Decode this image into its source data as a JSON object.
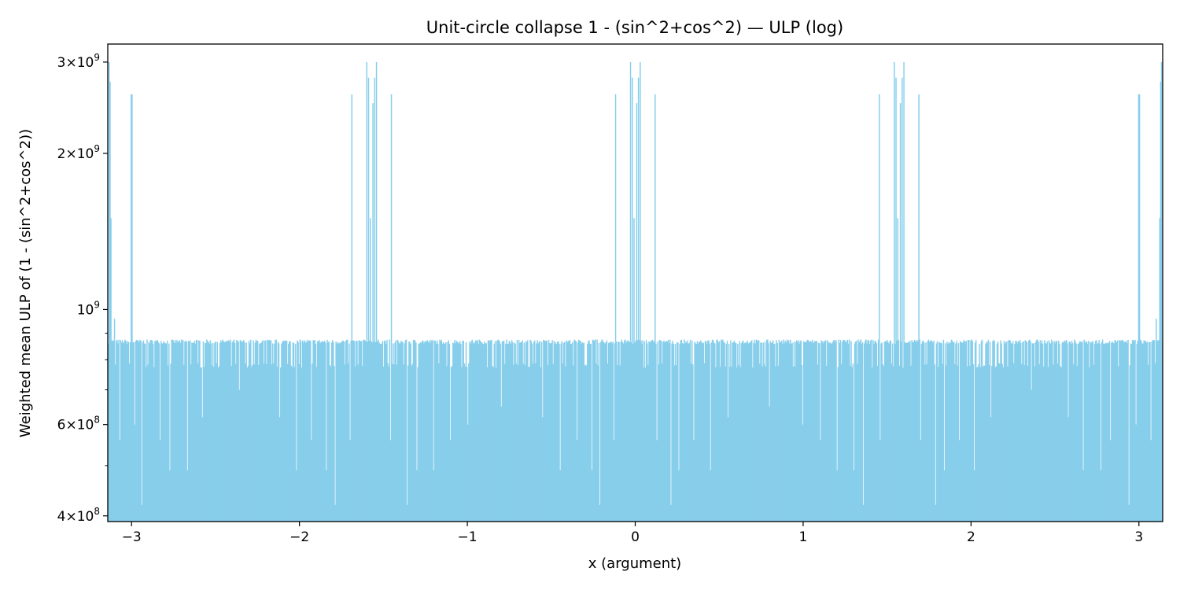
{
  "chart_data": {
    "type": "bar",
    "title": "Unit-circle collapse 1 - (sin^2+cos^2) — ULP (log)",
    "xlabel": "x (argument)",
    "ylabel": "Weighted mean ULP of (1 - (sin^2+cos^2))",
    "xlim": [
      -3.14159,
      3.14159
    ],
    "ylim": [
      390000000,
      3250000000
    ],
    "yscale": "log",
    "grid": false,
    "bar_color": "#87ceeb",
    "x_ticks": [
      {
        "value": -3,
        "label": "−3"
      },
      {
        "value": -2,
        "label": "−2"
      },
      {
        "value": -1,
        "label": "−1"
      },
      {
        "value": 0,
        "label": "0"
      },
      {
        "value": 1,
        "label": "1"
      },
      {
        "value": 2,
        "label": "2"
      },
      {
        "value": 3,
        "label": "3"
      }
    ],
    "y_ticks": [
      {
        "value": 400000000,
        "mantissa": "4",
        "exp": "8"
      },
      {
        "value": 600000000,
        "mantissa": "6",
        "exp": "8"
      },
      {
        "value": 1000000000,
        "mantissa": "",
        "exp": "9"
      },
      {
        "value": 2000000000,
        "mantissa": "2",
        "exp": "9"
      },
      {
        "value": 3000000000,
        "mantissa": "3",
        "exp": "9"
      }
    ],
    "y_minor_ticks": [
      500000000,
      700000000,
      800000000,
      900000000
    ],
    "series": [
      {
        "bin_count": 1200,
        "baseline_value": 880000000,
        "spike_groups": [
          {
            "center": -3.14159,
            "bars": [
              {
                "dx": 0.006,
                "value": 3000000000
              },
              {
                "dx": 0.012,
                "value": 2750000000
              },
              {
                "dx": 0.018,
                "value": 1500000000
              },
              {
                "dx": 0.04,
                "value": 960000000
              },
              {
                "dx": 0.14,
                "value": 2600000000
              },
              {
                "dx": 0.145,
                "value": 2600000000
              }
            ]
          },
          {
            "center": -1.5708,
            "bars": [
              {
                "dx": -0.12,
                "value": 2600000000
              },
              {
                "dx": -0.03,
                "value": 3000000000
              },
              {
                "dx": -0.02,
                "value": 2800000000
              },
              {
                "dx": -0.01,
                "value": 1500000000
              },
              {
                "dx": 0.01,
                "value": 2500000000
              },
              {
                "dx": 0.02,
                "value": 2800000000
              },
              {
                "dx": 0.03,
                "value": 3000000000
              },
              {
                "dx": 0.12,
                "value": 2600000000
              }
            ]
          },
          {
            "center": 0,
            "bars": [
              {
                "dx": -0.12,
                "value": 2600000000
              },
              {
                "dx": -0.03,
                "value": 3000000000
              },
              {
                "dx": -0.02,
                "value": 2800000000
              },
              {
                "dx": -0.01,
                "value": 1500000000
              },
              {
                "dx": 0.01,
                "value": 2500000000
              },
              {
                "dx": 0.02,
                "value": 2800000000
              },
              {
                "dx": 0.03,
                "value": 3000000000
              },
              {
                "dx": 0.12,
                "value": 2600000000
              }
            ]
          },
          {
            "center": 1.5708,
            "bars": [
              {
                "dx": -0.12,
                "value": 2600000000
              },
              {
                "dx": -0.03,
                "value": 3000000000
              },
              {
                "dx": -0.02,
                "value": 2800000000
              },
              {
                "dx": -0.01,
                "value": 1500000000
              },
              {
                "dx": 0.01,
                "value": 2500000000
              },
              {
                "dx": 0.02,
                "value": 2800000000
              },
              {
                "dx": 0.03,
                "value": 3000000000
              },
              {
                "dx": 0.12,
                "value": 2600000000
              }
            ]
          },
          {
            "center": 3.14159,
            "bars": [
              {
                "dx": -0.006,
                "value": 3000000000
              },
              {
                "dx": -0.012,
                "value": 2750000000
              },
              {
                "dx": -0.018,
                "value": 1500000000
              },
              {
                "dx": -0.04,
                "value": 960000000
              },
              {
                "dx": -0.14,
                "value": 2600000000
              },
              {
                "dx": -0.145,
                "value": 2600000000
              }
            ]
          }
        ],
        "dips": [
          {
            "x": -3.1,
            "value": 620000000
          },
          {
            "x": -3.07,
            "value": 560000000
          },
          {
            "x": -2.98,
            "value": 600000000
          },
          {
            "x": -2.94,
            "value": 420000000
          },
          {
            "x": -2.83,
            "value": 560000000
          },
          {
            "x": -2.77,
            "value": 490000000
          },
          {
            "x": -2.67,
            "value": 490000000
          },
          {
            "x": -2.58,
            "value": 620000000
          },
          {
            "x": -2.36,
            "value": 700000000
          },
          {
            "x": -2.12,
            "value": 620000000
          },
          {
            "x": -2.02,
            "value": 490000000
          },
          {
            "x": -1.93,
            "value": 560000000
          },
          {
            "x": -1.84,
            "value": 490000000
          },
          {
            "x": -1.79,
            "value": 420000000
          },
          {
            "x": -1.7,
            "value": 560000000
          },
          {
            "x": -1.46,
            "value": 560000000
          },
          {
            "x": -1.36,
            "value": 420000000
          },
          {
            "x": -1.3,
            "value": 490000000
          },
          {
            "x": -1.2,
            "value": 490000000
          },
          {
            "x": -1.1,
            "value": 560000000
          },
          {
            "x": -1.0,
            "value": 600000000
          },
          {
            "x": -0.8,
            "value": 650000000
          },
          {
            "x": -0.55,
            "value": 620000000
          },
          {
            "x": -0.45,
            "value": 490000000
          },
          {
            "x": -0.35,
            "value": 560000000
          },
          {
            "x": -0.26,
            "value": 490000000
          },
          {
            "x": -0.21,
            "value": 420000000
          },
          {
            "x": -0.13,
            "value": 560000000
          },
          {
            "x": 0.13,
            "value": 560000000
          },
          {
            "x": 0.21,
            "value": 420000000
          },
          {
            "x": 0.26,
            "value": 490000000
          },
          {
            "x": 0.35,
            "value": 560000000
          },
          {
            "x": 0.45,
            "value": 490000000
          },
          {
            "x": 0.55,
            "value": 620000000
          },
          {
            "x": 0.8,
            "value": 650000000
          },
          {
            "x": 1.0,
            "value": 600000000
          },
          {
            "x": 1.1,
            "value": 560000000
          },
          {
            "x": 1.2,
            "value": 490000000
          },
          {
            "x": 1.3,
            "value": 490000000
          },
          {
            "x": 1.36,
            "value": 420000000
          },
          {
            "x": 1.46,
            "value": 560000000
          },
          {
            "x": 1.7,
            "value": 560000000
          },
          {
            "x": 1.79,
            "value": 420000000
          },
          {
            "x": 1.84,
            "value": 490000000
          },
          {
            "x": 1.93,
            "value": 560000000
          },
          {
            "x": 2.02,
            "value": 490000000
          },
          {
            "x": 2.12,
            "value": 620000000
          },
          {
            "x": 2.36,
            "value": 700000000
          },
          {
            "x": 2.58,
            "value": 620000000
          },
          {
            "x": 2.67,
            "value": 490000000
          },
          {
            "x": 2.77,
            "value": 490000000
          },
          {
            "x": 2.83,
            "value": 560000000
          },
          {
            "x": 2.94,
            "value": 420000000
          },
          {
            "x": 2.98,
            "value": 600000000
          },
          {
            "x": 3.07,
            "value": 560000000
          },
          {
            "x": 3.1,
            "value": 620000000
          }
        ]
      }
    ]
  }
}
